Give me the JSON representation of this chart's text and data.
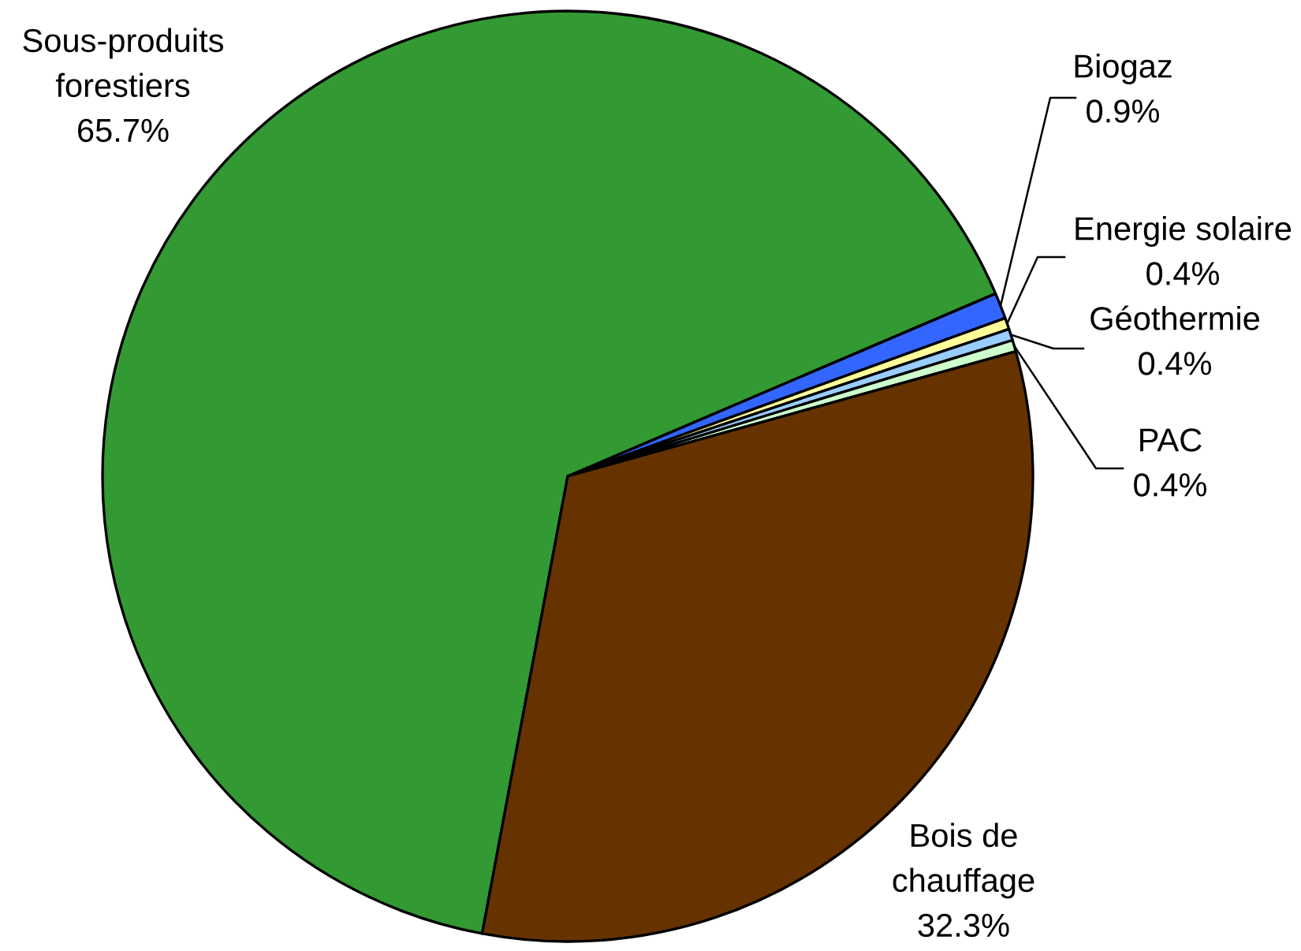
{
  "chart_data": {
    "type": "pie",
    "categories": [
      "Sous-produits\nforestiers",
      "Biogaz",
      "Energie solaire",
      "Géothermie",
      "PAC",
      "Bois de\nchauffage"
    ],
    "values": [
      65.7,
      0.9,
      0.4,
      0.4,
      0.4,
      32.3
    ],
    "colors": [
      "#339933",
      "#3366ff",
      "#ffff99",
      "#99ccff",
      "#ccffcc",
      "#663300"
    ],
    "value_labels": [
      "65.7%",
      "0.9%",
      "0.4%",
      "0.4%",
      "0.4%",
      "32.3%"
    ]
  }
}
